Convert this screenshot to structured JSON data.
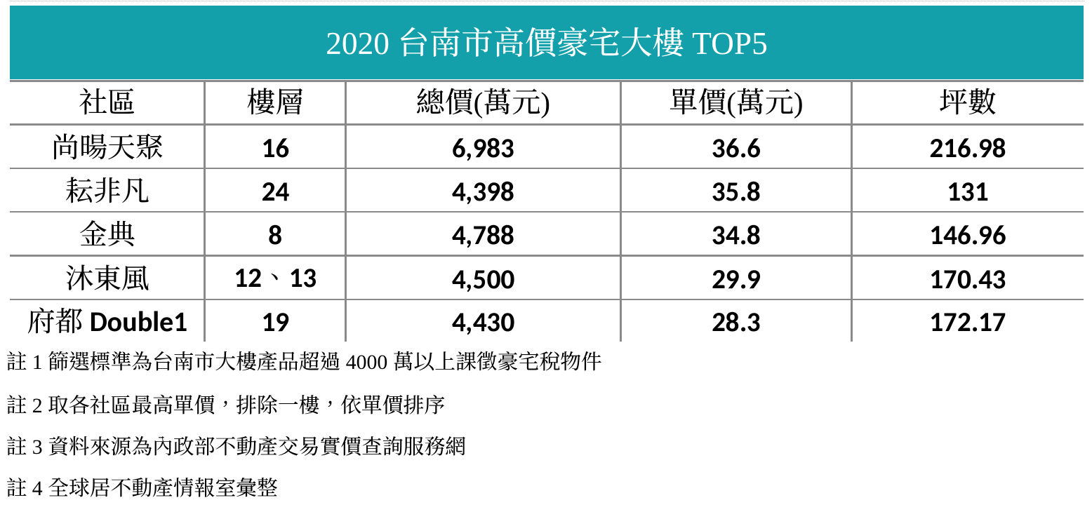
{
  "title": "2020 台南市高價豪宅大樓 TOP5",
  "table": {
    "columns": [
      "社區",
      "樓層",
      "總價(萬元)",
      "單價(萬元)",
      "坪數"
    ],
    "rows": [
      [
        "尚暘天聚",
        "16",
        "6,983",
        "36.6",
        "216.98"
      ],
      [
        "耘非凡",
        "24",
        "4,398",
        "35.8",
        "131"
      ],
      [
        "金典",
        "8",
        "4,788",
        "34.8",
        "146.96"
      ],
      [
        "沐東風",
        "12、13",
        "4,500",
        "29.9",
        "170.43"
      ],
      [
        "府都 Double1",
        "19",
        "4,430",
        "28.3",
        "172.17"
      ]
    ]
  },
  "notes": [
    "註 1 篩選標準為台南市大樓產品超過 4000 萬以上課徵豪宅稅物件",
    "註 2 取各社區最高單價，排除一樓，依單價排序",
    "註 3 資料來源為內政部不動產交易實價查詢服務網",
    "註 4 全球居不動產情報室彙整"
  ],
  "colors": {
    "header_bg": "#14a0aa",
    "header_text": "#ffffff",
    "grid_line": "#8a8a8a",
    "body_text": "#000000"
  },
  "chart_data": {
    "type": "table",
    "title": "2020 台南市高價豪宅大樓 TOP5",
    "columns": [
      "社區",
      "樓層",
      "總價(萬元)",
      "單價(萬元)",
      "坪數"
    ],
    "rows": [
      {
        "社區": "尚暘天聚",
        "樓層": "16",
        "總價(萬元)": 6983,
        "單價(萬元)": 36.6,
        "坪數": 216.98
      },
      {
        "社區": "耘非凡",
        "樓層": "24",
        "總價(萬元)": 4398,
        "單價(萬元)": 35.8,
        "坪數": 131
      },
      {
        "社區": "金典",
        "樓層": "8",
        "總價(萬元)": 4788,
        "單價(萬元)": 34.8,
        "坪數": 146.96
      },
      {
        "社區": "沐東風",
        "樓層": "12、13",
        "總價(萬元)": 4500,
        "單價(萬元)": 29.9,
        "坪數": 170.43
      },
      {
        "社區": "府都 Double1",
        "樓層": "19",
        "總價(萬元)": 4430,
        "單價(萬元)": 28.3,
        "坪數": 172.17
      }
    ]
  }
}
